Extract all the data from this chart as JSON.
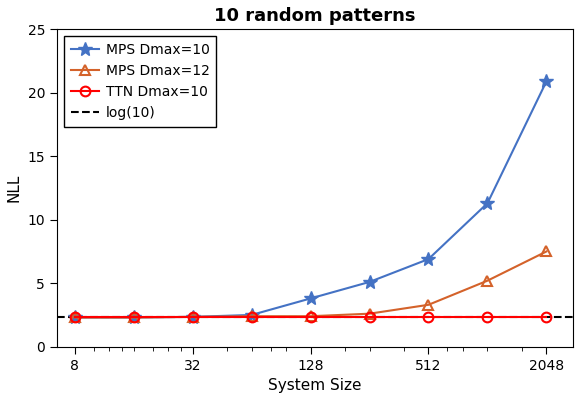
{
  "title": "10 random patterns",
  "xlabel": "System Size",
  "ylabel": "NLL",
  "ylim": [
    0,
    25
  ],
  "yticks": [
    0,
    5,
    10,
    15,
    20,
    25
  ],
  "log10_val": 2.302585092994046,
  "mps10_x": [
    8,
    16,
    32,
    64,
    128,
    256,
    512,
    1024,
    2048
  ],
  "mps10_y": [
    2.3,
    2.3,
    2.35,
    2.5,
    3.8,
    5.1,
    6.9,
    11.3,
    20.9
  ],
  "mps12_x": [
    8,
    16,
    32,
    64,
    128,
    256,
    512,
    1024,
    2048
  ],
  "mps12_y": [
    2.3,
    2.3,
    2.35,
    2.4,
    2.4,
    2.6,
    3.3,
    5.2,
    7.5
  ],
  "ttn10_x": [
    8,
    16,
    32,
    64,
    128,
    256,
    512,
    1024,
    2048
  ],
  "ttn10_y": [
    2.3,
    2.3,
    2.3,
    2.3,
    2.3,
    2.3,
    2.3,
    2.3,
    2.3
  ],
  "mps10_color": "#4472C4",
  "mps12_color": "#D4622A",
  "ttn10_color": "#FF0000",
  "log_color": "#000000",
  "title_fontsize": 13,
  "label_fontsize": 11,
  "tick_fontsize": 10,
  "legend_fontsize": 10,
  "linewidth": 1.5,
  "markersize_star": 10,
  "markersize_other": 7,
  "xtick_major": [
    8,
    32,
    128,
    512,
    2048
  ],
  "xtick_minor": [
    16,
    64,
    256,
    1024
  ]
}
